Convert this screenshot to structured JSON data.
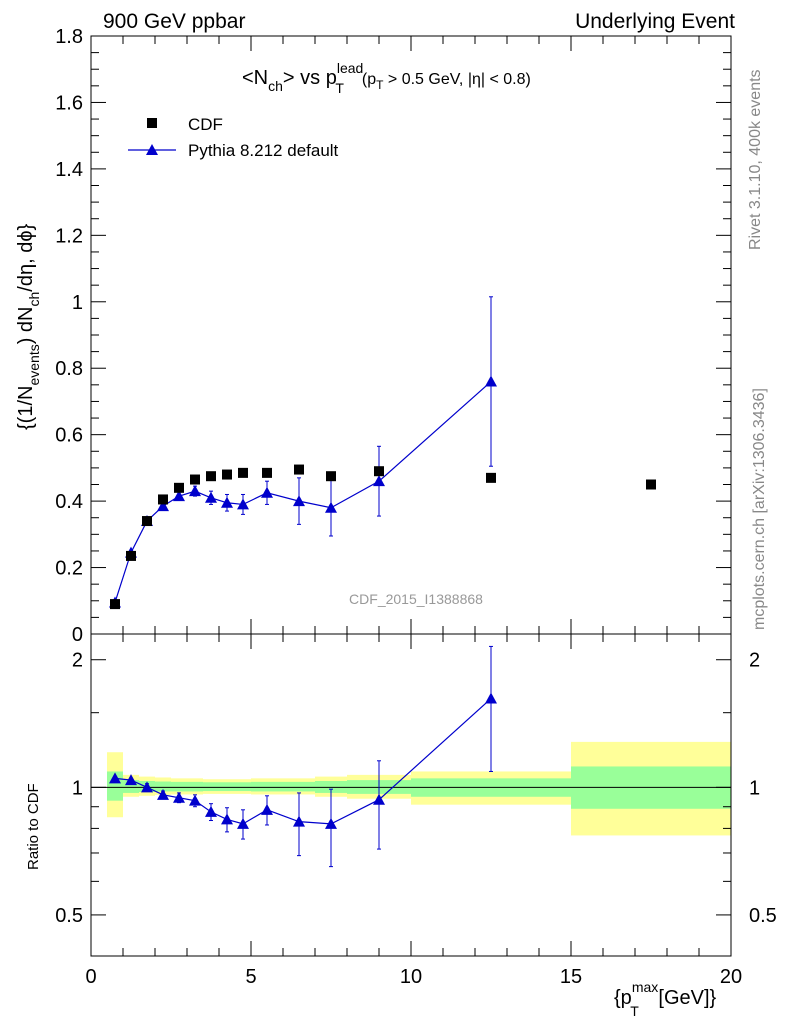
{
  "header": {
    "left": "900 GeV ppbar",
    "right": "Underlying Event"
  },
  "side_labels": {
    "rivet": "Rivet 3.1.10,  400k events",
    "mcplots": "mcplots.cern.ch [arXiv:1306.3436]"
  },
  "watermark": "CDF_2015_I1388868",
  "title": {
    "t1": "<N",
    "t1sub": "ch",
    "t2": "> vs p",
    "t2sup": "lead",
    "t2sub": "T",
    "t3": "(p",
    "t3sub": "T",
    "t4": " > 0.5 GeV, |η| < 0.8)"
  },
  "ylabel": {
    "a": "{(1/N",
    "asub": "events",
    "b": ") dN",
    "bsub": "ch",
    "c": "/dη, dϕ}"
  },
  "ratio_ylabel": "Ratio to CDF",
  "xlabel": {
    "a": "{p",
    "asup": "max",
    "asub": "T",
    "b": " [GeV]}"
  },
  "legend": {
    "items": [
      {
        "label": "CDF",
        "color": "#000000",
        "marker": "square"
      },
      {
        "label": "Pythia 8.212 default",
        "color": "#0000cc",
        "marker": "triangle"
      }
    ]
  },
  "chart_data": [
    {
      "type": "scatter",
      "panel": "main",
      "xlim": [
        0,
        20
      ],
      "ylim": [
        0,
        1.8
      ],
      "yticks": [
        0,
        0.2,
        0.4,
        0.6,
        0.8,
        1,
        1.2,
        1.4,
        1.6,
        1.8
      ],
      "ytick_labels": [
        "0",
        "0.2",
        "0.4",
        "0.6",
        "0.8",
        "1",
        "1.2",
        "1.4",
        "1.6",
        "1.8"
      ],
      "series": [
        {
          "name": "CDF",
          "color": "#000000",
          "marker": "square",
          "x": [
            0.75,
            1.25,
            1.75,
            2.25,
            2.75,
            3.25,
            3.75,
            4.25,
            4.75,
            5.5,
            6.5,
            7.5,
            9.0,
            12.5,
            17.5
          ],
          "y": [
            0.09,
            0.235,
            0.34,
            0.405,
            0.44,
            0.465,
            0.475,
            0.48,
            0.485,
            0.485,
            0.495,
            0.475,
            0.49,
            0.47,
            0.45
          ]
        },
        {
          "name": "Pythia 8.212 default",
          "color": "#0000cc",
          "marker": "triangle",
          "x": [
            0.75,
            1.25,
            1.75,
            2.25,
            2.75,
            3.25,
            3.75,
            4.25,
            4.75,
            5.5,
            6.5,
            7.5,
            9.0,
            12.5
          ],
          "y": [
            0.095,
            0.245,
            0.34,
            0.385,
            0.415,
            0.43,
            0.41,
            0.395,
            0.39,
            0.425,
            0.4,
            0.38,
            0.46,
            0.76
          ],
          "yerr": [
            0.005,
            0.005,
            0.008,
            0.01,
            0.012,
            0.015,
            0.02,
            0.025,
            0.03,
            0.035,
            0.07,
            0.085,
            0.105,
            0.255
          ]
        }
      ]
    },
    {
      "type": "scatter",
      "panel": "ratio",
      "xlim": [
        0,
        20
      ],
      "ylim": [
        0.4,
        2.3
      ],
      "log_y": true,
      "xticks": [
        0,
        5,
        10,
        15,
        20
      ],
      "xtick_labels": [
        "0",
        "5",
        "10",
        "15",
        "20"
      ],
      "yticks": [
        0.5,
        1,
        2
      ],
      "ytick_labels": [
        "0.5",
        "1",
        "2"
      ],
      "bands": [
        {
          "x0": 0.5,
          "x1": 1.0,
          "green": [
            0.93,
            1.09
          ],
          "yellow": [
            0.85,
            1.21
          ]
        },
        {
          "x0": 1.0,
          "x1": 1.5,
          "green": [
            0.97,
            1.04
          ],
          "yellow": [
            0.95,
            1.07
          ]
        },
        {
          "x0": 1.5,
          "x1": 2.0,
          "green": [
            0.975,
            1.035
          ],
          "yellow": [
            0.955,
            1.06
          ]
        },
        {
          "x0": 2.0,
          "x1": 2.5,
          "green": [
            0.978,
            1.032
          ],
          "yellow": [
            0.96,
            1.055
          ]
        },
        {
          "x0": 2.5,
          "x1": 3.0,
          "green": [
            0.978,
            1.03
          ],
          "yellow": [
            0.962,
            1.05
          ]
        },
        {
          "x0": 3.0,
          "x1": 3.5,
          "green": [
            0.978,
            1.03
          ],
          "yellow": [
            0.962,
            1.05
          ]
        },
        {
          "x0": 3.5,
          "x1": 4.0,
          "green": [
            0.98,
            1.028
          ],
          "yellow": [
            0.965,
            1.045
          ]
        },
        {
          "x0": 4.0,
          "x1": 4.5,
          "green": [
            0.98,
            1.028
          ],
          "yellow": [
            0.965,
            1.045
          ]
        },
        {
          "x0": 4.5,
          "x1": 5.0,
          "green": [
            0.98,
            1.028
          ],
          "yellow": [
            0.965,
            1.045
          ]
        },
        {
          "x0": 5.0,
          "x1": 6.0,
          "green": [
            0.978,
            1.03
          ],
          "yellow": [
            0.962,
            1.05
          ]
        },
        {
          "x0": 6.0,
          "x1": 7.0,
          "green": [
            0.978,
            1.03
          ],
          "yellow": [
            0.962,
            1.05
          ]
        },
        {
          "x0": 7.0,
          "x1": 8.0,
          "green": [
            0.97,
            1.035
          ],
          "yellow": [
            0.95,
            1.06
          ]
        },
        {
          "x0": 8.0,
          "x1": 10.0,
          "green": [
            0.965,
            1.04
          ],
          "yellow": [
            0.94,
            1.07
          ]
        },
        {
          "x0": 10.0,
          "x1": 15.0,
          "green": [
            0.95,
            1.05
          ],
          "yellow": [
            0.91,
            1.09
          ]
        },
        {
          "x0": 15.0,
          "x1": 20.0,
          "green": [
            0.89,
            1.12
          ],
          "yellow": [
            0.77,
            1.28
          ]
        }
      ],
      "series": [
        {
          "name": "Pythia 8.212 default",
          "color": "#0000cc",
          "marker": "triangle",
          "x": [
            0.75,
            1.25,
            1.75,
            2.25,
            2.75,
            3.25,
            3.75,
            4.25,
            4.75,
            5.5,
            6.5,
            7.5,
            9.0,
            12.5
          ],
          "y": [
            1.05,
            1.04,
            1.0,
            0.96,
            0.945,
            0.93,
            0.875,
            0.84,
            0.82,
            0.885,
            0.83,
            0.82,
            0.935,
            1.62
          ],
          "yerr": [
            0.01,
            0.015,
            0.02,
            0.02,
            0.025,
            0.03,
            0.04,
            0.055,
            0.065,
            0.07,
            0.14,
            0.17,
            0.22,
            0.53
          ]
        }
      ]
    }
  ]
}
